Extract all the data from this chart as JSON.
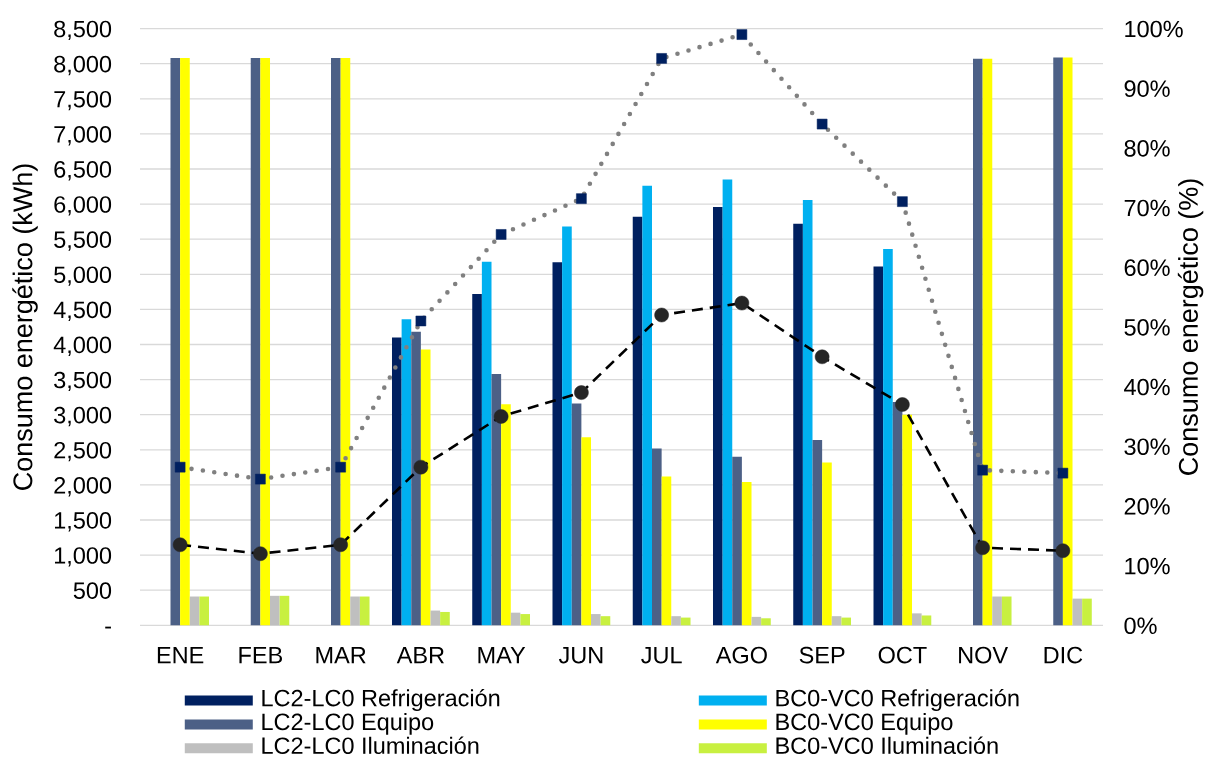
{
  "chart_data": {
    "type": "bar",
    "ylabel": "Consumo energético (kWh)",
    "y2label": "Consumo energético (%)",
    "categories": [
      "ENE",
      "FEB",
      "MAR",
      "ABR",
      "MAY",
      "JUN",
      "JUL",
      "AGO",
      "SEP",
      "OCT",
      "NOV",
      "DIC"
    ],
    "series": [
      {
        "name": "LC2-LC0 Refrigeración",
        "color": "#002060",
        "values": [
          null,
          null,
          null,
          4100,
          4720,
          5170,
          5820,
          5960,
          5720,
          5110,
          null,
          null
        ]
      },
      {
        "name": "BC0-VC0 Refrigeración",
        "color": "#00b0f0",
        "values": [
          null,
          null,
          null,
          4360,
          5180,
          5680,
          6260,
          6350,
          6060,
          5360,
          null,
          null
        ]
      },
      {
        "name": "LC2-LC0 Equipo",
        "color": "#4c6086",
        "values": [
          8080,
          8080,
          8080,
          4180,
          3580,
          3160,
          2520,
          2400,
          2640,
          3180,
          8070,
          8090
        ]
      },
      {
        "name": "BC0-VC0 Equipo",
        "color": "#ffff00",
        "values": [
          8080,
          8080,
          8080,
          3930,
          3150,
          2680,
          2120,
          2040,
          2320,
          3000,
          8070,
          8090
        ]
      },
      {
        "name": "LC2-LC0 Iluminación",
        "color": "#bfbfbf",
        "values": [
          410,
          420,
          410,
          210,
          180,
          160,
          130,
          120,
          130,
          170,
          410,
          380
        ]
      },
      {
        "name": "BC0-VC0 Iluminación",
        "color": "#c8f040",
        "values": [
          410,
          420,
          410,
          190,
          160,
          130,
          110,
          100,
          110,
          140,
          410,
          380
        ]
      },
      {
        "type": "line",
        "axis": "y2",
        "color": "#808080",
        "line_style": "dotted",
        "values": [
          26.5,
          24.5,
          26.5,
          51,
          65.5,
          71.5,
          95,
          99,
          84,
          71,
          26,
          25.5
        ]
      },
      {
        "type": "scatter",
        "axis": "y2",
        "color": "#002060",
        "marker": "square",
        "values": [
          26.5,
          24.5,
          26.5,
          51,
          65.5,
          71.5,
          95,
          99,
          84,
          71,
          26,
          25.5
        ]
      },
      {
        "type": "line",
        "axis": "y2",
        "color": "#000000",
        "colors": [
          "#262626",
          "#262626",
          "#262626",
          "#262626",
          "#262626",
          "#262626",
          "#262626",
          "#262626",
          "#262626",
          "#262626",
          "#262626",
          "#262626"
        ],
        "marker": "circle",
        "line_style": "dashed",
        "values": [
          13.5,
          12,
          13.5,
          26.5,
          35,
          39,
          52,
          54,
          45,
          37,
          13,
          12.5
        ]
      }
    ],
    "ylim": [
      0,
      8500
    ],
    "yticks": [
      {
        "value": 0,
        "label": "-"
      },
      500,
      {
        "value": 1000,
        "label": "1,000"
      },
      {
        "value": 1500,
        "label": "1,500"
      },
      {
        "value": 2000,
        "label": "2,000"
      },
      {
        "value": 2500,
        "label": "2,500"
      },
      {
        "value": 3000,
        "label": "3,000"
      },
      {
        "value": 3500,
        "label": "3,500"
      },
      {
        "value": 4000,
        "label": "4,000"
      },
      {
        "value": 4500,
        "label": "4,500"
      },
      {
        "value": 5000,
        "label": "5,000"
      },
      {
        "value": 5500,
        "label": "5,500"
      },
      {
        "value": 6000,
        "label": "6,000"
      },
      {
        "value": 6500,
        "label": "6,500"
      },
      {
        "value": 7000,
        "label": "7,000"
      },
      {
        "value": 7500,
        "label": "7,500"
      },
      {
        "value": 8000,
        "label": "8,000"
      },
      {
        "value": 8500,
        "label": "8,500"
      }
    ],
    "y2lim": [
      0,
      100
    ],
    "y2ticks": [
      {
        "value": 0,
        "label": "0%"
      },
      {
        "value": 10,
        "label": "10%"
      },
      {
        "value": 20,
        "label": "20%"
      },
      {
        "value": 30,
        "label": "30%"
      },
      {
        "value": 40,
        "label": "40%"
      },
      {
        "value": 50,
        "label": "50%"
      },
      {
        "value": 60,
        "label": "60%"
      },
      {
        "value": 70,
        "label": "70%"
      },
      {
        "value": 80,
        "label": "80%"
      },
      {
        "value": 90,
        "label": "90%"
      },
      {
        "value": 100,
        "label": "100%"
      }
    ],
    "grid": "y",
    "legend": "bottom"
  }
}
